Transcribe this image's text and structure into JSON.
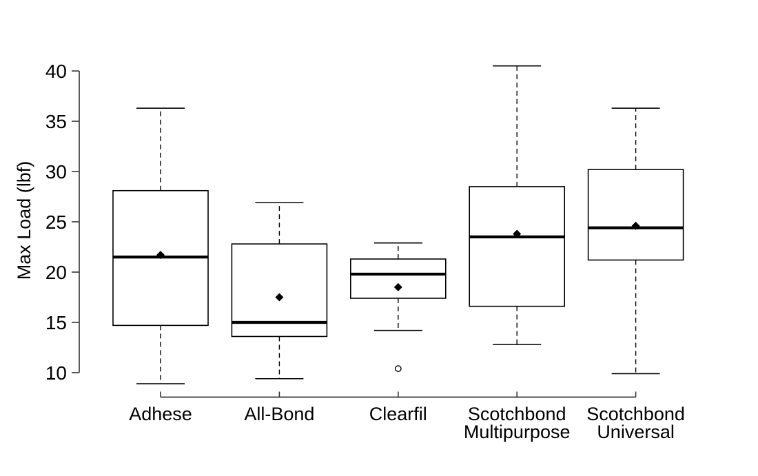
{
  "chart_data": {
    "type": "boxplot",
    "title": "",
    "xlabel": "",
    "ylabel": "Max Load (lbf)",
    "yticks": [
      10,
      15,
      20,
      25,
      30,
      35,
      40
    ],
    "ylim": [
      8.5,
      41
    ],
    "grid": false,
    "legend": "none",
    "categories": [
      "Adhese",
      "All-Bond",
      "Clearfil",
      "Scotchbond Multipurpose",
      "Scotchbond Universal"
    ],
    "category_label_lines": [
      [
        "Adhese"
      ],
      [
        "All-Bond"
      ],
      [
        "Clearfil"
      ],
      [
        "Scotchbond",
        "Multipurpose"
      ],
      [
        "Scotchbond",
        "Universal"
      ]
    ],
    "boxes": [
      {
        "label": "Adhese",
        "whisker_low": 8.9,
        "q1": 14.7,
        "median": 21.5,
        "q3": 28.1,
        "whisker_high": 36.3,
        "mean": 21.7,
        "outliers": []
      },
      {
        "label": "All-Bond",
        "whisker_low": 9.4,
        "q1": 13.6,
        "median": 15.0,
        "q3": 22.8,
        "whisker_high": 26.9,
        "mean": 17.5,
        "outliers": []
      },
      {
        "label": "Clearfil",
        "whisker_low": 14.2,
        "q1": 17.4,
        "median": 19.8,
        "q3": 21.3,
        "whisker_high": 22.9,
        "mean": 18.5,
        "outliers": [
          10.4
        ]
      },
      {
        "label": "Scotchbond Multipurpose",
        "whisker_low": 12.8,
        "q1": 16.6,
        "median": 23.5,
        "q3": 28.5,
        "whisker_high": 40.5,
        "mean": 23.8,
        "outliers": []
      },
      {
        "label": "Scotchbond Universal",
        "whisker_low": 9.9,
        "q1": 21.2,
        "median": 24.4,
        "q3": 30.2,
        "whisker_high": 36.3,
        "mean": 24.6,
        "outliers": []
      }
    ],
    "colors": {
      "line": "#000000",
      "axis": "#333333",
      "box_fill": "#ffffff",
      "mean_marker": "#000000",
      "background": "#ffffff"
    },
    "marker_styles": {
      "mean": "filled-diamond",
      "outlier": "open-circle"
    }
  }
}
